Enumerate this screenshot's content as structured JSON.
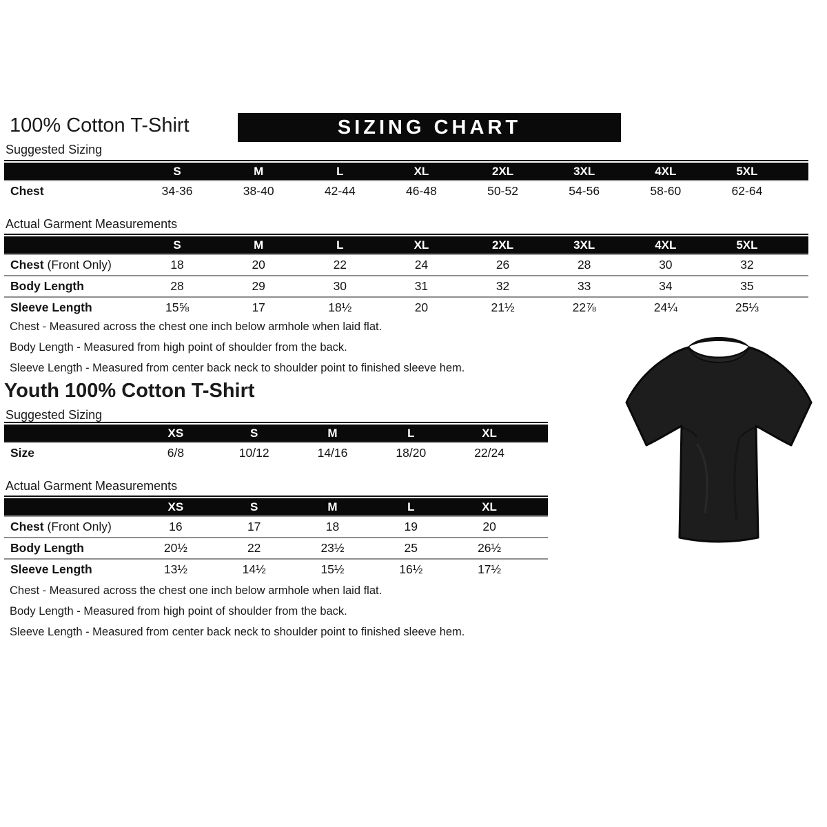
{
  "adult": {
    "title": "100% Cotton T-Shirt",
    "banner": "SIZING CHART",
    "suggested": {
      "label": "Suggested Sizing",
      "columns": [
        "S",
        "M",
        "L",
        "XL",
        "2XL",
        "3XL",
        "4XL",
        "5XL"
      ],
      "rows": [
        {
          "label": "Chest",
          "suffix": "",
          "values": [
            "34-36",
            "38-40",
            "42-44",
            "46-48",
            "50-52",
            "54-56",
            "58-60",
            "62-64"
          ]
        }
      ]
    },
    "actual": {
      "label": "Actual Garment Measurements",
      "columns": [
        "S",
        "M",
        "L",
        "XL",
        "2XL",
        "3XL",
        "4XL",
        "5XL"
      ],
      "rows": [
        {
          "label": "Chest",
          "suffix": "(Front Only)",
          "values": [
            "18",
            "20",
            "22",
            "24",
            "26",
            "28",
            "30",
            "32"
          ]
        },
        {
          "label": "Body Length",
          "suffix": "",
          "values": [
            "28",
            "29",
            "30",
            "31",
            "32",
            "33",
            "34",
            "35"
          ]
        },
        {
          "label": "Sleeve Length",
          "suffix": "",
          "values": [
            "15⅝",
            "17",
            "18½",
            "20",
            "21½",
            "22⅞",
            "24¼",
            "25⅓"
          ]
        }
      ]
    },
    "notes": [
      "Chest - Measured across the chest one inch below armhole when laid flat.",
      "Body Length - Measured from high point of shoulder from the back.",
      "Sleeve Length - Measured from center back neck to shoulder point to finished sleeve hem."
    ]
  },
  "youth": {
    "title": "Youth 100% Cotton T-Shirt",
    "suggested": {
      "label": "Suggested Sizing",
      "columns": [
        "XS",
        "S",
        "M",
        "L",
        "XL"
      ],
      "rows": [
        {
          "label": "Size",
          "suffix": "",
          "values": [
            "6/8",
            "10/12",
            "14/16",
            "18/20",
            "22/24"
          ]
        }
      ]
    },
    "actual": {
      "label": "Actual Garment Measurements",
      "columns": [
        "XS",
        "S",
        "M",
        "L",
        "XL"
      ],
      "rows": [
        {
          "label": "Chest",
          "suffix": "(Front Only)",
          "values": [
            "16",
            "17",
            "18",
            "19",
            "20"
          ]
        },
        {
          "label": "Body Length",
          "suffix": "",
          "values": [
            "20½",
            "22",
            "23½",
            "25",
            "26½"
          ]
        },
        {
          "label": "Sleeve Length",
          "suffix": "",
          "values": [
            "13½",
            "14½",
            "15½",
            "16½",
            "17½"
          ]
        }
      ]
    },
    "notes": [
      "Chest - Measured across the chest one inch below armhole when laid flat.",
      "Body Length - Measured from high point of shoulder from the back.",
      "Sleeve Length - Measured from center back neck to shoulder point to finished sleeve hem."
    ]
  },
  "tshirt": {
    "name": "black-tshirt-photo",
    "body_color": "#1d1d1d",
    "edge_color": "#0a0a0a",
    "collar_color": "#262626"
  }
}
